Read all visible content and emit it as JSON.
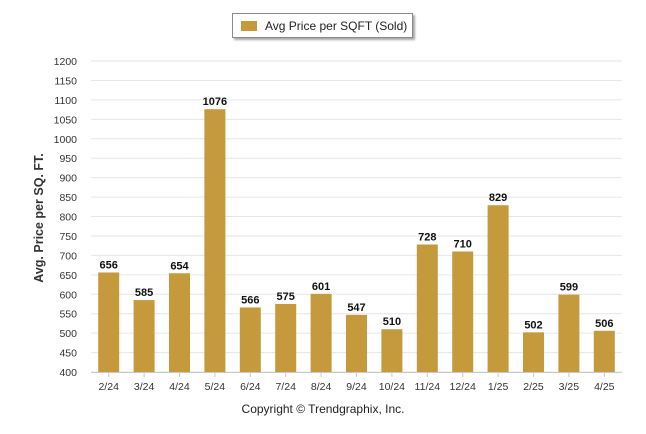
{
  "chart_data": {
    "type": "bar",
    "categories": [
      "2/24",
      "3/24",
      "4/24",
      "5/24",
      "6/24",
      "7/24",
      "8/24",
      "9/24",
      "10/24",
      "11/24",
      "12/24",
      "1/25",
      "2/25",
      "3/25",
      "4/25"
    ],
    "series": [
      {
        "name": "Avg Price per SQFT (Sold)",
        "values": [
          656,
          585,
          654,
          1076,
          566,
          575,
          601,
          547,
          510,
          728,
          710,
          829,
          502,
          599,
          506
        ]
      }
    ],
    "ylabel": "Avg. Price per SQ. FT.",
    "ylim": [
      400,
      1200
    ],
    "yticks": [
      400,
      450,
      500,
      550,
      600,
      650,
      700,
      750,
      800,
      850,
      900,
      950,
      1000,
      1050,
      1100,
      1150,
      1200
    ],
    "grid": true,
    "legend_position": "top-center",
    "bar_color": "#C49A3D",
    "data_labels": true
  },
  "legend": {
    "label": "Avg Price per SQFT (Sold)"
  },
  "footer": {
    "copyright": "Copyright © Trendgraphix, Inc."
  }
}
